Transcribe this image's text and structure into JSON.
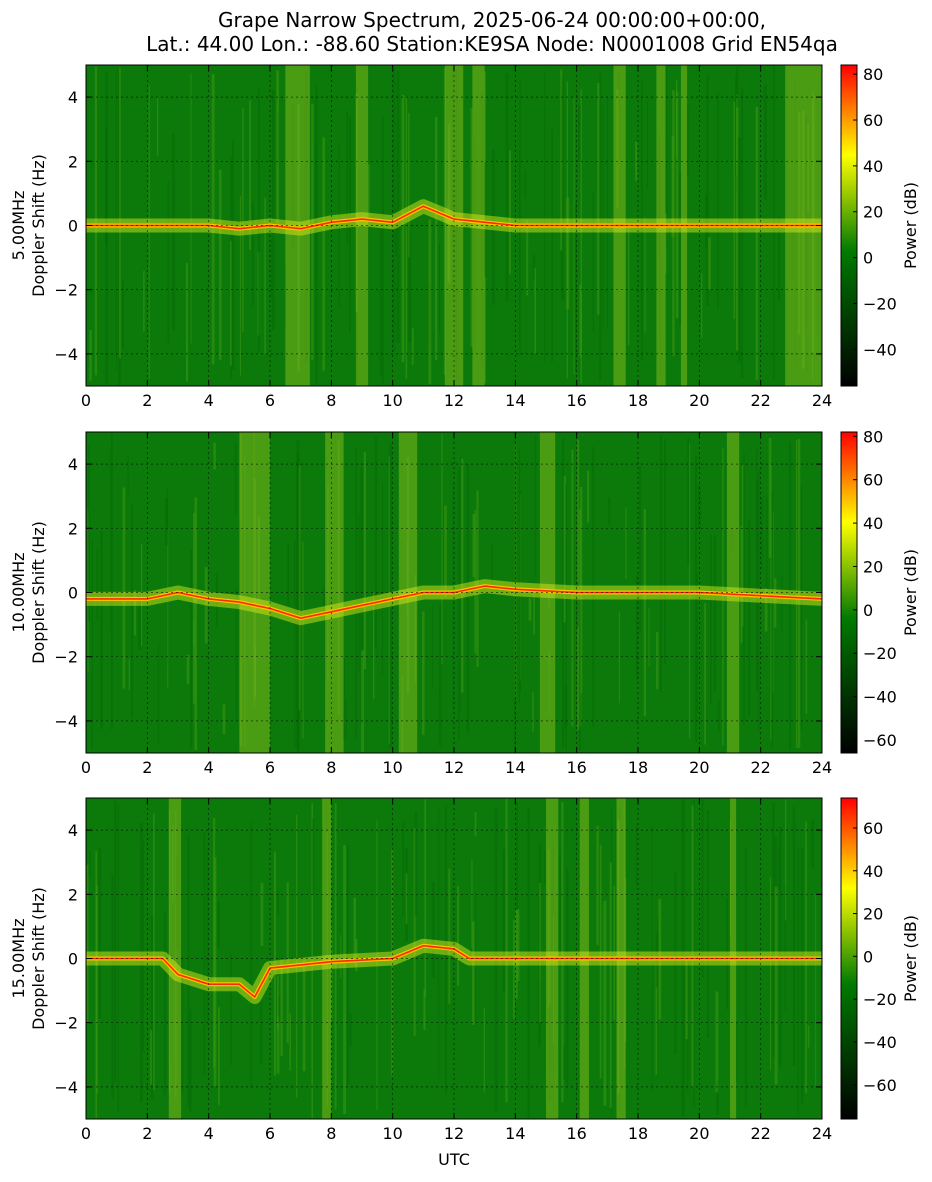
{
  "figure": {
    "title_line1": "Grape Narrow Spectrum, 2025-06-24 00:00:00+00:00,",
    "title_line2": "Lat.: 44.00 Lon.: -88.60 Station:KE9SA Node: N0001008 Grid EN54qa",
    "xlabel": "UTC"
  },
  "colors": {
    "stops": [
      "#000000",
      "#007a00",
      "#ffff00",
      "#ff0000"
    ],
    "grid": "#000000"
  },
  "chart_data": [
    {
      "type": "heatmap",
      "band_label": "5.00MHz",
      "ylabel": "Doppler Shift (Hz)",
      "xlim": [
        0,
        24
      ],
      "ylim": [
        -5,
        5
      ],
      "xticks": [
        0,
        2,
        4,
        6,
        8,
        10,
        12,
        14,
        16,
        18,
        20,
        22,
        24
      ],
      "yticks": [
        -4,
        -2,
        0,
        2,
        4
      ],
      "colorbar": {
        "label": "Power (dB)",
        "range": [
          -56,
          84
        ],
        "ticks": [
          -40,
          -20,
          0,
          20,
          40,
          60,
          80
        ]
      },
      "carrier_trace": [
        [
          0,
          0.0
        ],
        [
          2,
          0.0
        ],
        [
          4,
          0.0
        ],
        [
          5,
          -0.1
        ],
        [
          6,
          0.0
        ],
        [
          7,
          -0.1
        ],
        [
          8,
          0.1
        ],
        [
          9,
          0.2
        ],
        [
          10,
          0.1
        ],
        [
          11,
          0.6
        ],
        [
          12,
          0.2
        ],
        [
          14,
          0.0
        ],
        [
          24,
          0.0
        ]
      ],
      "enhanced_bands_utc": [
        [
          6.5,
          7.3
        ],
        [
          8.8,
          9.2
        ],
        [
          11.7,
          12.3
        ],
        [
          12.6,
          13.0
        ],
        [
          17.2,
          17.6
        ],
        [
          18.6,
          18.9
        ],
        [
          19.4,
          19.6
        ],
        [
          22.8,
          24.0
        ]
      ]
    },
    {
      "type": "heatmap",
      "band_label": "10.00MHz",
      "ylabel": "Doppler Shift (Hz)",
      "xlim": [
        0,
        24
      ],
      "ylim": [
        -5,
        5
      ],
      "xticks": [
        0,
        2,
        4,
        6,
        8,
        10,
        12,
        14,
        16,
        18,
        20,
        22,
        24
      ],
      "yticks": [
        -4,
        -2,
        0,
        2,
        4
      ],
      "colorbar": {
        "label": "Power (dB)",
        "range": [
          -66,
          82
        ],
        "ticks": [
          -60,
          -40,
          -20,
          0,
          20,
          40,
          60,
          80
        ]
      },
      "carrier_trace": [
        [
          0,
          -0.2
        ],
        [
          2,
          -0.2
        ],
        [
          3,
          0.0
        ],
        [
          4,
          -0.2
        ],
        [
          5,
          -0.3
        ],
        [
          6,
          -0.5
        ],
        [
          7,
          -0.8
        ],
        [
          8,
          -0.6
        ],
        [
          9,
          -0.4
        ],
        [
          10,
          -0.2
        ],
        [
          11,
          0.0
        ],
        [
          12,
          0.0
        ],
        [
          13,
          0.2
        ],
        [
          14,
          0.1
        ],
        [
          16,
          0.0
        ],
        [
          18,
          0.0
        ],
        [
          20,
          0.0
        ],
        [
          24,
          -0.2
        ]
      ],
      "enhanced_bands_utc": [
        [
          5.0,
          6.0
        ],
        [
          7.8,
          8.4
        ],
        [
          10.2,
          10.8
        ],
        [
          14.8,
          15.3
        ],
        [
          20.9,
          21.3
        ]
      ]
    },
    {
      "type": "heatmap",
      "band_label": "15.00MHz",
      "ylabel": "Doppler Shift (Hz)",
      "xlim": [
        0,
        24
      ],
      "ylim": [
        -5,
        5
      ],
      "xticks": [
        0,
        2,
        4,
        6,
        8,
        10,
        12,
        14,
        16,
        18,
        20,
        22,
        24
      ],
      "yticks": [
        -4,
        -2,
        0,
        2,
        4
      ],
      "colorbar": {
        "label": "Power (dB)",
        "range": [
          -76,
          74
        ],
        "ticks": [
          -60,
          -40,
          -20,
          0,
          20,
          40,
          60
        ]
      },
      "carrier_trace": [
        [
          0,
          0.0
        ],
        [
          2.5,
          0.0
        ],
        [
          3,
          -0.5
        ],
        [
          4,
          -0.8
        ],
        [
          5,
          -0.8
        ],
        [
          5.5,
          -1.2
        ],
        [
          6,
          -0.3
        ],
        [
          7,
          -0.2
        ],
        [
          8,
          -0.1
        ],
        [
          10,
          0.0
        ],
        [
          11,
          0.4
        ],
        [
          12,
          0.3
        ],
        [
          12.5,
          0.0
        ],
        [
          24,
          0.0
        ]
      ],
      "enhanced_bands_utc": [
        [
          2.7,
          3.1
        ],
        [
          7.7,
          8.0
        ],
        [
          15.0,
          15.4
        ],
        [
          16.1,
          16.4
        ],
        [
          17.3,
          17.6
        ],
        [
          21.0,
          21.2
        ]
      ]
    }
  ]
}
